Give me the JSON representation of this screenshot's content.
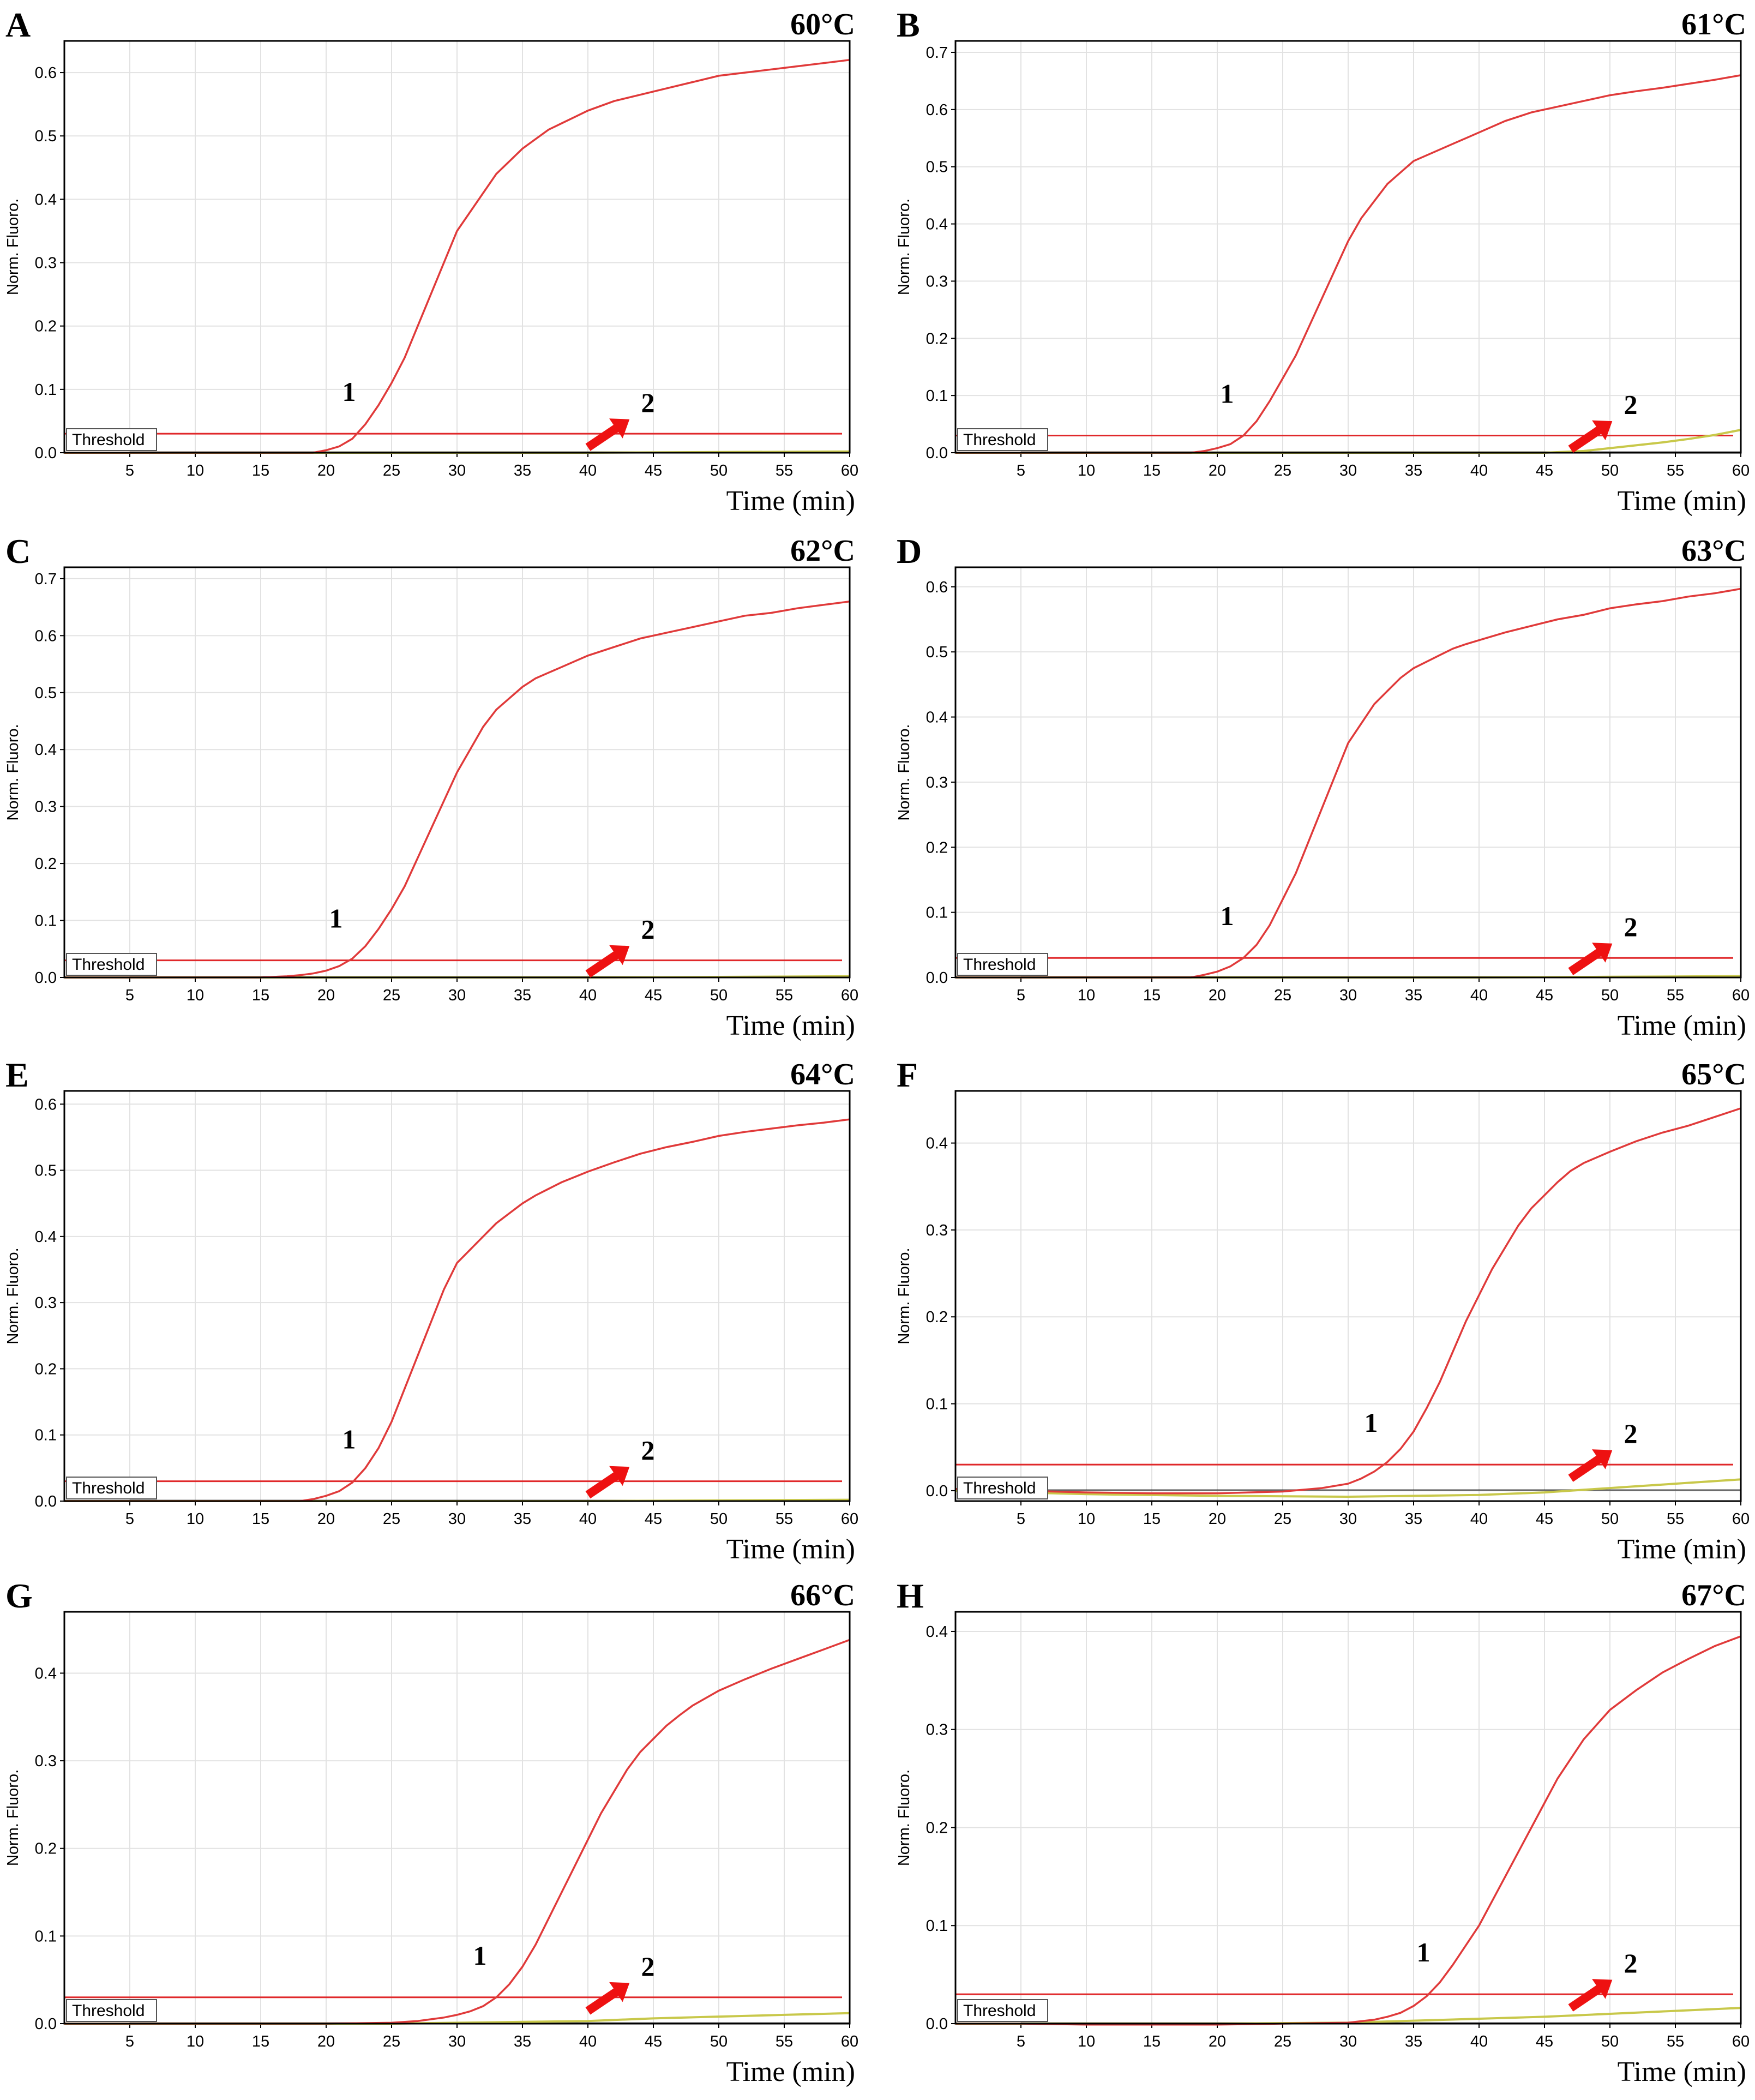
{
  "colors": {
    "amplification": "#e03a3a",
    "threshold": "#e0282a",
    "negative": "#c8c84a",
    "baseline_dark": "#000000",
    "grid": "#e2e2e2",
    "arrow": "#ee1111"
  },
  "chart_data": [
    {
      "type": "line",
      "panel": "A",
      "title": "60°C",
      "xlabel": "Time (min)",
      "ylabel": "Norm. Fluoro.",
      "xlim": [
        0,
        60
      ],
      "ylim": [
        0,
        0.65
      ],
      "xticks": [
        5,
        10,
        15,
        20,
        25,
        30,
        35,
        40,
        45,
        50,
        55,
        60
      ],
      "yticks": [
        0.0,
        0.1,
        0.2,
        0.3,
        0.4,
        0.5,
        0.6
      ],
      "threshold": 0.03,
      "threshold_label": "Threshold",
      "curve_labels": {
        "positive": "1",
        "negative": "2"
      },
      "series": [
        {
          "name": "1",
          "x": [
            0,
            5,
            10,
            15,
            19,
            20,
            21,
            22,
            23,
            24,
            25,
            26,
            27,
            28,
            29,
            30,
            31,
            32,
            33,
            34,
            35,
            36,
            37,
            38,
            39,
            40,
            42,
            44,
            46,
            48,
            50,
            52,
            54,
            56,
            58,
            60
          ],
          "values": [
            0,
            0,
            0,
            0,
            0,
            0.004,
            0.01,
            0.022,
            0.045,
            0.075,
            0.11,
            0.15,
            0.2,
            0.25,
            0.3,
            0.35,
            0.38,
            0.41,
            0.44,
            0.46,
            0.48,
            0.495,
            0.51,
            0.52,
            0.53,
            0.54,
            0.555,
            0.565,
            0.575,
            0.585,
            0.595,
            0.6,
            0.605,
            0.61,
            0.615,
            0.62
          ]
        },
        {
          "name": "2",
          "x": [
            0,
            10,
            20,
            30,
            40,
            50,
            60
          ],
          "values": [
            0,
            0,
            0,
            0,
            0,
            0.001,
            0.002
          ]
        }
      ]
    },
    {
      "type": "line",
      "panel": "B",
      "title": "61°C",
      "xlabel": "Time (min)",
      "ylabel": "Norm. Fluoro.",
      "xlim": [
        0,
        60
      ],
      "ylim": [
        0,
        0.72
      ],
      "xticks": [
        5,
        10,
        15,
        20,
        25,
        30,
        35,
        40,
        45,
        50,
        55,
        60
      ],
      "yticks": [
        0.0,
        0.1,
        0.2,
        0.3,
        0.4,
        0.5,
        0.6,
        0.7
      ],
      "threshold": 0.03,
      "threshold_label": "Threshold",
      "curve_labels": {
        "positive": "1",
        "negative": "2"
      },
      "series": [
        {
          "name": "1",
          "x": [
            0,
            5,
            10,
            15,
            18,
            19,
            20,
            21,
            22,
            23,
            24,
            25,
            26,
            27,
            28,
            29,
            30,
            31,
            32,
            33,
            34,
            35,
            36,
            37,
            38,
            39,
            40,
            42,
            44,
            46,
            48,
            50,
            52,
            54,
            56,
            58,
            60
          ],
          "values": [
            0,
            0,
            0,
            0,
            0,
            0.003,
            0.008,
            0.015,
            0.03,
            0.055,
            0.09,
            0.13,
            0.17,
            0.22,
            0.27,
            0.32,
            0.37,
            0.41,
            0.44,
            0.47,
            0.49,
            0.51,
            0.52,
            0.53,
            0.54,
            0.55,
            0.56,
            0.58,
            0.595,
            0.605,
            0.615,
            0.625,
            0.632,
            0.638,
            0.645,
            0.652,
            0.66
          ]
        },
        {
          "name": "2",
          "x": [
            0,
            10,
            20,
            30,
            40,
            45,
            48,
            50,
            52,
            54,
            56,
            58,
            60
          ],
          "values": [
            0,
            0,
            0,
            0,
            0,
            0,
            0.003,
            0.008,
            0.013,
            0.018,
            0.024,
            0.031,
            0.04
          ]
        }
      ]
    },
    {
      "type": "line",
      "panel": "C",
      "title": "62°C",
      "xlabel": "Time (min)",
      "ylabel": "Norm. Fluoro.",
      "xlim": [
        0,
        60
      ],
      "ylim": [
        0,
        0.72
      ],
      "xticks": [
        5,
        10,
        15,
        20,
        25,
        30,
        35,
        40,
        45,
        50,
        55,
        60
      ],
      "yticks": [
        0.0,
        0.1,
        0.2,
        0.3,
        0.4,
        0.5,
        0.6,
        0.7
      ],
      "threshold": 0.03,
      "threshold_label": "Threshold",
      "curve_labels": {
        "positive": "1",
        "negative": "2"
      },
      "series": [
        {
          "name": "1",
          "x": [
            0,
            5,
            10,
            15,
            17,
            18,
            19,
            20,
            21,
            22,
            23,
            24,
            25,
            26,
            27,
            28,
            29,
            30,
            31,
            32,
            33,
            34,
            35,
            36,
            37,
            38,
            39,
            40,
            42,
            44,
            46,
            48,
            50,
            52,
            54,
            56,
            58,
            60
          ],
          "values": [
            0,
            0,
            0,
            0,
            0.002,
            0.004,
            0.007,
            0.012,
            0.02,
            0.033,
            0.055,
            0.085,
            0.12,
            0.16,
            0.21,
            0.26,
            0.31,
            0.36,
            0.4,
            0.44,
            0.47,
            0.49,
            0.51,
            0.525,
            0.535,
            0.545,
            0.555,
            0.565,
            0.58,
            0.595,
            0.605,
            0.615,
            0.625,
            0.635,
            0.64,
            0.648,
            0.654,
            0.66
          ]
        },
        {
          "name": "2",
          "x": [
            0,
            10,
            20,
            30,
            40,
            50,
            60
          ],
          "values": [
            0,
            0,
            0,
            0,
            0,
            0.001,
            0.002
          ]
        }
      ]
    },
    {
      "type": "line",
      "panel": "D",
      "title": "63°C",
      "xlabel": "Time (min)",
      "ylabel": "Norm. Fluoro.",
      "xlim": [
        0,
        60
      ],
      "ylim": [
        0,
        0.63
      ],
      "xticks": [
        5,
        10,
        15,
        20,
        25,
        30,
        35,
        40,
        45,
        50,
        55,
        60
      ],
      "yticks": [
        0.0,
        0.1,
        0.2,
        0.3,
        0.4,
        0.5,
        0.6
      ],
      "threshold": 0.03,
      "threshold_label": "Threshold",
      "curve_labels": {
        "positive": "1",
        "negative": "2"
      },
      "series": [
        {
          "name": "1",
          "x": [
            0,
            5,
            10,
            15,
            18,
            19,
            20,
            21,
            22,
            23,
            24,
            25,
            26,
            27,
            28,
            29,
            30,
            31,
            32,
            33,
            34,
            35,
            36,
            37,
            38,
            39,
            40,
            42,
            44,
            46,
            48,
            50,
            52,
            54,
            56,
            58,
            60
          ],
          "values": [
            0,
            0,
            0,
            0,
            0,
            0.004,
            0.009,
            0.017,
            0.03,
            0.05,
            0.08,
            0.12,
            0.16,
            0.21,
            0.26,
            0.31,
            0.36,
            0.39,
            0.42,
            0.44,
            0.46,
            0.475,
            0.485,
            0.495,
            0.505,
            0.512,
            0.518,
            0.53,
            0.54,
            0.55,
            0.557,
            0.567,
            0.573,
            0.578,
            0.585,
            0.59,
            0.597
          ]
        },
        {
          "name": "2",
          "x": [
            0,
            10,
            20,
            30,
            40,
            50,
            60
          ],
          "values": [
            0,
            0,
            0,
            0,
            0,
            0.001,
            0.002
          ]
        }
      ]
    },
    {
      "type": "line",
      "panel": "E",
      "title": "64°C",
      "xlabel": "Time (min)",
      "ylabel": "Norm. Fluoro.",
      "xlim": [
        0,
        60
      ],
      "ylim": [
        0,
        0.62
      ],
      "xticks": [
        5,
        10,
        15,
        20,
        25,
        30,
        35,
        40,
        45,
        50,
        55,
        60
      ],
      "yticks": [
        0.0,
        0.1,
        0.2,
        0.3,
        0.4,
        0.5,
        0.6
      ],
      "threshold": 0.03,
      "threshold_label": "Threshold",
      "curve_labels": {
        "positive": "1",
        "negative": "2"
      },
      "series": [
        {
          "name": "1",
          "x": [
            0,
            5,
            10,
            15,
            18,
            19,
            20,
            21,
            22,
            23,
            24,
            25,
            26,
            27,
            28,
            29,
            30,
            31,
            32,
            33,
            34,
            35,
            36,
            37,
            38,
            39,
            40,
            42,
            44,
            46,
            48,
            50,
            52,
            54,
            56,
            58,
            60
          ],
          "values": [
            0,
            0,
            0,
            0,
            0,
            0.003,
            0.008,
            0.015,
            0.028,
            0.05,
            0.08,
            0.12,
            0.17,
            0.22,
            0.27,
            0.32,
            0.36,
            0.38,
            0.4,
            0.42,
            0.435,
            0.45,
            0.462,
            0.472,
            0.482,
            0.49,
            0.498,
            0.512,
            0.525,
            0.535,
            0.543,
            0.552,
            0.558,
            0.563,
            0.568,
            0.572,
            0.577
          ]
        },
        {
          "name": "2",
          "x": [
            0,
            10,
            20,
            30,
            40,
            50,
            60
          ],
          "values": [
            0,
            0,
            0,
            0,
            0,
            0.001,
            0.002
          ]
        }
      ]
    },
    {
      "type": "line",
      "panel": "F",
      "title": "65°C",
      "xlabel": "Time (min)",
      "ylabel": "Norm. Fluoro.",
      "xlim": [
        0,
        60
      ],
      "ylim": [
        -0.012,
        0.46
      ],
      "xticks": [
        5,
        10,
        15,
        20,
        25,
        30,
        35,
        40,
        45,
        50,
        55,
        60
      ],
      "yticks": [
        0.0,
        0.1,
        0.2,
        0.3,
        0.4
      ],
      "threshold": 0.03,
      "threshold_label": "Threshold",
      "curve_labels": {
        "positive": "1",
        "negative": "2"
      },
      "series": [
        {
          "name": "1",
          "x": [
            0,
            5,
            10,
            15,
            20,
            25,
            28,
            30,
            31,
            32,
            33,
            34,
            35,
            36,
            37,
            38,
            39,
            40,
            41,
            42,
            43,
            44,
            45,
            46,
            47,
            48,
            50,
            52,
            54,
            56,
            58,
            60
          ],
          "values": [
            0.002,
            0,
            -0.002,
            -0.003,
            -0.003,
            -0.001,
            0.003,
            0.008,
            0.014,
            0.022,
            0.033,
            0.048,
            0.068,
            0.095,
            0.125,
            0.16,
            0.195,
            0.225,
            0.255,
            0.28,
            0.305,
            0.325,
            0.34,
            0.355,
            0.368,
            0.377,
            0.39,
            0.402,
            0.412,
            0.42,
            0.43,
            0.44
          ]
        },
        {
          "name": "2",
          "x": [
            0,
            10,
            20,
            30,
            40,
            45,
            48,
            50,
            52,
            54,
            56,
            58,
            60
          ],
          "values": [
            0,
            -0.004,
            -0.006,
            -0.007,
            -0.005,
            -0.002,
            0.001,
            0.003,
            0.005,
            0.007,
            0.009,
            0.011,
            0.013
          ]
        }
      ]
    },
    {
      "type": "line",
      "panel": "G",
      "title": "66°C",
      "xlabel": "Time (min)",
      "ylabel": "Norm. Fluoro.",
      "xlim": [
        0,
        60
      ],
      "ylim": [
        0,
        0.47
      ],
      "xticks": [
        5,
        10,
        15,
        20,
        25,
        30,
        35,
        40,
        45,
        50,
        55,
        60
      ],
      "yticks": [
        0.0,
        0.1,
        0.2,
        0.3,
        0.4
      ],
      "threshold": 0.03,
      "threshold_label": "Threshold",
      "curve_labels": {
        "positive": "1",
        "negative": "2"
      },
      "series": [
        {
          "name": "1",
          "x": [
            0,
            5,
            10,
            15,
            20,
            25,
            27,
            28,
            29,
            30,
            31,
            32,
            33,
            34,
            35,
            36,
            37,
            38,
            39,
            40,
            41,
            42,
            43,
            44,
            45,
            46,
            47,
            48,
            50,
            52,
            54,
            56,
            58,
            60
          ],
          "values": [
            0,
            0,
            0,
            0,
            0,
            0.001,
            0.003,
            0.005,
            0.007,
            0.01,
            0.014,
            0.02,
            0.03,
            0.045,
            0.065,
            0.09,
            0.12,
            0.15,
            0.18,
            0.21,
            0.24,
            0.265,
            0.29,
            0.31,
            0.325,
            0.34,
            0.352,
            0.363,
            0.38,
            0.393,
            0.405,
            0.416,
            0.427,
            0.438
          ]
        },
        {
          "name": "2",
          "x": [
            0,
            10,
            20,
            25,
            30,
            35,
            40,
            45,
            50,
            55,
            60
          ],
          "values": [
            0,
            0,
            0,
            0,
            0.001,
            0.002,
            0.003,
            0.006,
            0.008,
            0.01,
            0.012
          ]
        }
      ]
    },
    {
      "type": "line",
      "panel": "H",
      "title": "67°C",
      "xlabel": "Time (min)",
      "ylabel": "Norm. Fluoro.",
      "xlim": [
        0,
        60
      ],
      "ylim": [
        0,
        0.42
      ],
      "xticks": [
        5,
        10,
        15,
        20,
        25,
        30,
        35,
        40,
        45,
        50,
        55,
        60
      ],
      "yticks": [
        0.0,
        0.1,
        0.2,
        0.3,
        0.4
      ],
      "threshold": 0.03,
      "threshold_label": "Threshold",
      "curve_labels": {
        "positive": "1",
        "negative": "2"
      },
      "series": [
        {
          "name": "1",
          "x": [
            0,
            5,
            10,
            15,
            20,
            25,
            30,
            32,
            33,
            34,
            35,
            36,
            37,
            38,
            39,
            40,
            41,
            42,
            43,
            44,
            45,
            46,
            47,
            48,
            49,
            50,
            52,
            54,
            56,
            58,
            60
          ],
          "values": [
            0,
            0,
            -0.001,
            -0.001,
            -0.001,
            0,
            0.001,
            0.004,
            0.007,
            0.011,
            0.018,
            0.028,
            0.042,
            0.06,
            0.08,
            0.1,
            0.125,
            0.15,
            0.175,
            0.2,
            0.225,
            0.25,
            0.27,
            0.29,
            0.305,
            0.32,
            0.34,
            0.358,
            0.372,
            0.385,
            0.395
          ]
        },
        {
          "name": "2",
          "x": [
            0,
            10,
            20,
            30,
            35,
            40,
            45,
            50,
            55,
            60
          ],
          "values": [
            0,
            0,
            0,
            0.001,
            0.003,
            0.005,
            0.007,
            0.01,
            0.013,
            0.016
          ]
        }
      ]
    }
  ]
}
